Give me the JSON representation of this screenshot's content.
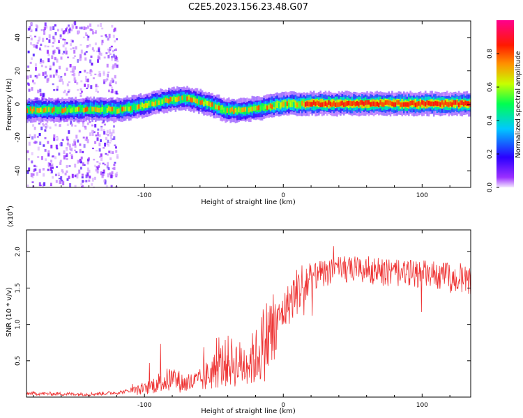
{
  "title": "C2E5.2023.156.23.48.G07",
  "chart_data": [
    {
      "type": "heatmap",
      "xlabel": "Height of straight line (km)",
      "ylabel": "Frequency (Hz)",
      "xlim": [
        -185,
        135
      ],
      "ylim": [
        -50,
        50
      ],
      "xticks": [
        -100,
        0,
        100
      ],
      "yticks": [
        -40,
        -20,
        0,
        20,
        40
      ],
      "ridge": {
        "x": [
          -185,
          -160,
          -140,
          -120,
          -105,
          -90,
          -80,
          -70,
          -60,
          -50,
          -42,
          -35,
          -28,
          -20,
          -12,
          -5,
          0,
          10,
          20,
          40,
          60,
          80,
          100,
          120,
          135
        ],
        "freq": [
          -3.5,
          -3.5,
          -3,
          -3.5,
          -1.5,
          1.5,
          3,
          3.5,
          1.5,
          -1,
          -3.5,
          -4,
          -3.5,
          -2.5,
          -1.5,
          -0.5,
          0,
          0.2,
          0.3,
          0.3,
          0.3,
          0.3,
          0.3,
          0.3,
          0.2
        ]
      },
      "noise_region": [
        -185,
        -120
      ]
    },
    {
      "type": "line",
      "xlabel": "Height of straight line (km)",
      "ylabel": "SNR (10 * v/v)",
      "multiplier_label": "(x10",
      "multiplier_exp": "4",
      "multiplier_close": ")",
      "xlim": [
        -185,
        135
      ],
      "ylim": [
        0,
        23000
      ],
      "xticks": [
        -100,
        0,
        100
      ],
      "yticks": [
        5000,
        10000,
        15000,
        20000
      ],
      "ytick_labels": [
        "0.5",
        "1.0",
        "1.5",
        "2.0"
      ],
      "color": "#ee3333",
      "envelope": {
        "x": [
          -185,
          -140,
          -120,
          -100,
          -90,
          -80,
          -70,
          -60,
          -50,
          -40,
          -30,
          -20,
          -15,
          -10,
          -5,
          0,
          5,
          10,
          15,
          20,
          30,
          40,
          60,
          80,
          100,
          120,
          135
        ],
        "y": [
          500,
          400,
          600,
          1200,
          2200,
          2800,
          2000,
          2500,
          4000,
          5500,
          5000,
          6000,
          8000,
          9500,
          10500,
          12000,
          13500,
          15000,
          16000,
          16500,
          17000,
          17500,
          17500,
          17000,
          17000,
          16500,
          16000
        ]
      }
    }
  ],
  "colorbar": {
    "label": "Normalized spectral amplitude",
    "range": [
      0,
      1
    ],
    "ticks": [
      0.0,
      0.2,
      0.4,
      0.6,
      0.8
    ],
    "tick_labels": [
      "0.0",
      "0.2",
      "0.4",
      "0.6",
      "0.8"
    ],
    "colors": [
      "#f4e8ff",
      "#7a00ff",
      "#0000ff",
      "#00ffff",
      "#00ff00",
      "#ffff00",
      "#ff8000",
      "#ff0000",
      "#ff0090"
    ]
  }
}
